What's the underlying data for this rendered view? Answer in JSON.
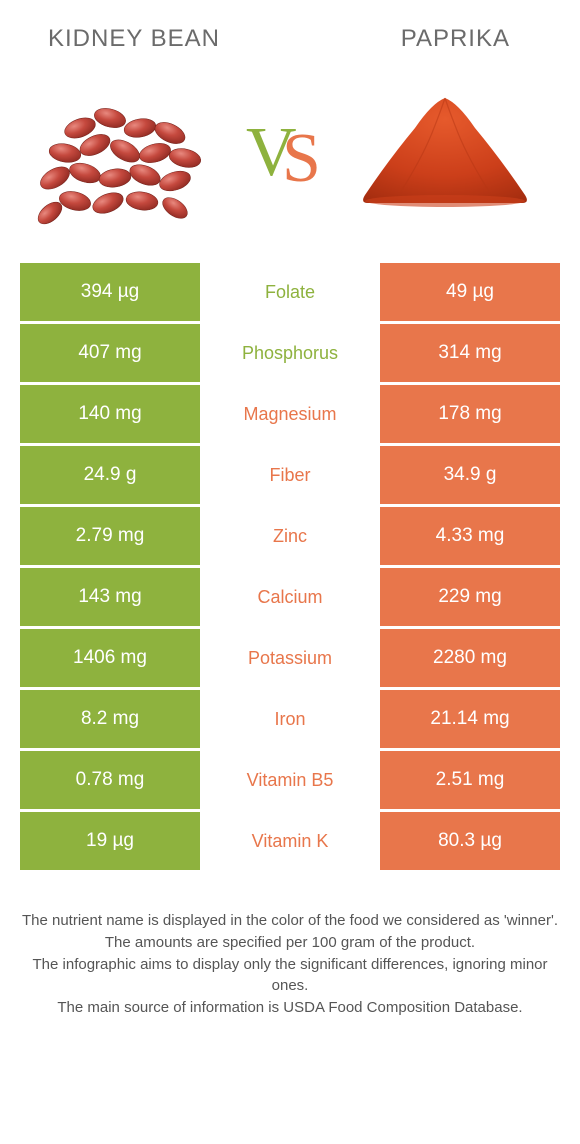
{
  "header": {
    "left": "Kidney bean",
    "right": "Paprika"
  },
  "colors": {
    "left": "#8eb23e",
    "right": "#e8764b",
    "left_text": "#8eb23e",
    "right_text": "#e8764b"
  },
  "vs": {
    "v_color": "#8eb23e",
    "s_color": "#e8764b"
  },
  "rows": [
    {
      "left": "394 µg",
      "label": "Folate",
      "right": "49 µg",
      "winner": "left"
    },
    {
      "left": "407 mg",
      "label": "Phosphorus",
      "right": "314 mg",
      "winner": "left"
    },
    {
      "left": "140 mg",
      "label": "Magnesium",
      "right": "178 mg",
      "winner": "right"
    },
    {
      "left": "24.9 g",
      "label": "Fiber",
      "right": "34.9 g",
      "winner": "right"
    },
    {
      "left": "2.79 mg",
      "label": "Zinc",
      "right": "4.33 mg",
      "winner": "right"
    },
    {
      "left": "143 mg",
      "label": "Calcium",
      "right": "229 mg",
      "winner": "right"
    },
    {
      "left": "1406 mg",
      "label": "Potassium",
      "right": "2280 mg",
      "winner": "right"
    },
    {
      "left": "8.2 mg",
      "label": "Iron",
      "right": "21.14 mg",
      "winner": "right"
    },
    {
      "left": "0.78 mg",
      "label": "Vitamin B5",
      "right": "2.51 mg",
      "winner": "right"
    },
    {
      "left": "19 µg",
      "label": "Vitamin K",
      "right": "80.3 µg",
      "winner": "right"
    }
  ],
  "footer": {
    "l1": "The nutrient name is displayed in the color of the food we considered as 'winner'.",
    "l2": "The amounts are specified per 100 gram of the product.",
    "l3": "The infographic aims to display only the significant differences, ignoring minor ones.",
    "l4": "The main source of information is USDA Food Composition Database."
  }
}
